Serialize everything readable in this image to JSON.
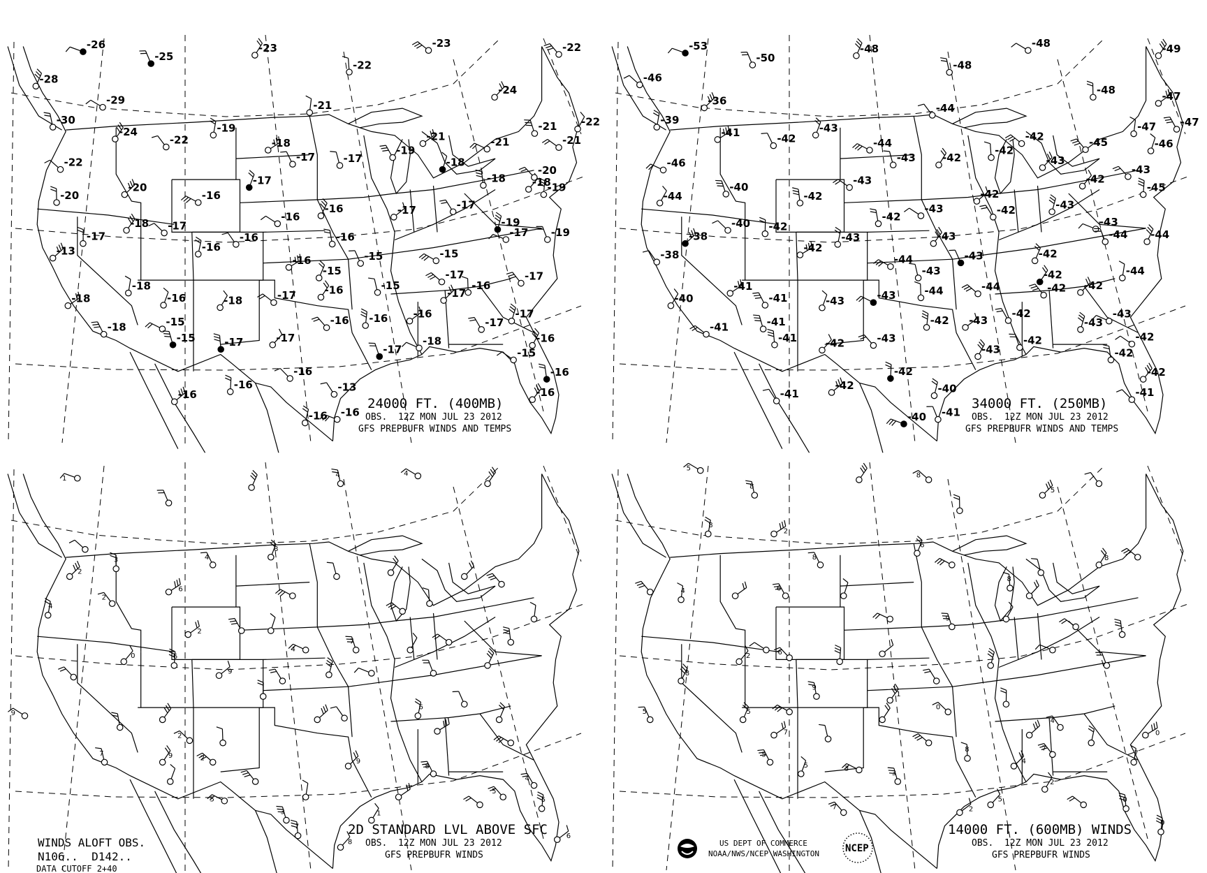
{
  "colors": {
    "ink": "#000000",
    "paper": "#ffffff"
  },
  "panels": [
    {
      "title": "24000 FT. (400MB)",
      "obs": "OBS.  12Z MON JUL 23 2012",
      "source": "GFS PREPBUFR WINDS AND TEMPS",
      "temps": [
        "-26",
        "-25",
        "-28",
        "-29",
        "-30",
        "-24",
        "-22",
        "-20",
        "-20",
        "-22",
        "-19",
        "-18",
        "-17",
        "-17",
        "-16",
        "-17",
        "-23",
        "-23",
        "-22",
        "-24",
        "-22",
        "-21",
        "-21",
        "-19",
        "-18",
        "-21",
        "-21",
        "-22",
        "-21",
        "-18",
        "-18",
        "-20",
        "-19",
        "-17",
        "-17",
        "-19",
        "-17",
        "-19",
        "-16",
        "-16",
        "-16",
        "-18",
        "-17",
        "-17",
        "-13",
        "-16",
        "-16",
        "-16",
        "-15",
        "-15",
        "-15",
        "-15",
        "-16",
        "-17",
        "-16",
        "-17",
        "-17",
        "-18",
        "-18",
        "-18",
        "-16",
        "-15",
        "-15",
        "-18",
        "-17",
        "-17",
        "-17",
        "-16",
        "-16",
        "-16",
        "-17",
        "-17",
        "-18",
        "-17",
        "-16",
        "-15",
        "-16",
        "-16",
        "-16",
        "-16",
        "-16",
        "-13",
        "-16",
        "-16"
      ]
    },
    {
      "title": "34000 FT. (250MB)",
      "obs": "OBS.  12Z MON JUL 23 2012",
      "source": "GFS PREPBUFR WINDS AND TEMPS",
      "temps": [
        "-53",
        "-50",
        "-48",
        "-48",
        "-48",
        "-49",
        "-46",
        "-48",
        "-36",
        "-44",
        "-39",
        "-41",
        "-42",
        "-43",
        "-44",
        "-43",
        "-42",
        "-42",
        "-42",
        "-43",
        "-45",
        "-47",
        "-47",
        "-47",
        "-46",
        "-46",
        "-40",
        "-44",
        "-43",
        "-42",
        "-42",
        "-43",
        "-45",
        "-42",
        "-42",
        "-43",
        "-43",
        "-44",
        "-44",
        "-43",
        "-42",
        "-43",
        "-40",
        "-42",
        "-38",
        "-38",
        "-43",
        "-42",
        "-43",
        "-42",
        "-44",
        "-43",
        "-42",
        "-44",
        "-44",
        "-42",
        "-42",
        "-44",
        "-41",
        "-41",
        "-43",
        "-43",
        "-41",
        "-40",
        "-41",
        "-41",
        "-42",
        "-43",
        "-42",
        "-43",
        "-42",
        "-43",
        "-43",
        "-42",
        "-43",
        "-42",
        "-42",
        "-42",
        "-41",
        "-42",
        "-42",
        "-41",
        "-40",
        "-40",
        "-41"
      ]
    },
    {
      "title": "2D STANDARD LVL ABOVE SFC",
      "obs": "OBS.  12Z MON JUL 23 2012",
      "source": "GFS PREPBUFR WINDS",
      "wind_speeds": [
        "1",
        "",
        "",
        "4",
        "4",
        "",
        "",
        "3",
        "2",
        "2",
        "4",
        "6",
        "4",
        "8",
        "",
        "",
        "",
        "",
        "",
        "",
        "",
        "",
        "2",
        "",
        "",
        "4",
        "7",
        "",
        "",
        "",
        "0",
        "",
        "6",
        "9",
        "",
        "",
        "",
        "",
        "",
        "9",
        "",
        "",
        "2",
        "",
        "",
        "",
        "6",
        "",
        "",
        "",
        "",
        "7",
        "9",
        "2",
        "",
        "9",
        "",
        "",
        "",
        "8",
        "",
        "5",
        "3",
        "1",
        "",
        "7",
        "8",
        "5",
        "5",
        "6",
        "4"
      ]
    },
    {
      "title": "14000 FT. (600MB) WINDS",
      "obs": "OBS.  12Z MON JUL 23 2012",
      "source": "GFS PREPBUFR WINDS",
      "wind_speeds": [
        "5",
        "8",
        "",
        "8",
        "",
        "5",
        "",
        "8",
        "2",
        "8",
        "6",
        "",
        "",
        "8",
        "",
        "8",
        "",
        "",
        "4",
        "",
        "6",
        "",
        "",
        "9",
        "",
        "",
        "",
        "2",
        "6",
        "",
        "",
        "",
        "",
        "",
        "",
        "8",
        "",
        "9",
        "1",
        "0",
        "",
        "",
        "4",
        "",
        "0",
        "5",
        "5",
        "",
        "",
        "",
        "",
        "8",
        "4",
        "7",
        "7",
        "7",
        "5",
        "5",
        "3",
        "3",
        "2",
        "",
        "0",
        "5",
        "7",
        "0",
        "2"
      ]
    }
  ],
  "legend": {
    "line1": "WINDS ALOFT OBS.",
    "line2": "N106..  D142..",
    "line3": "DATA CUTOFF 2+40"
  },
  "credits": {
    "agency": "US DEPT OF COMMERCE",
    "office": "NOAA/NWS/NCEP WASHINGTON",
    "ncep_logo": "NCEP"
  }
}
